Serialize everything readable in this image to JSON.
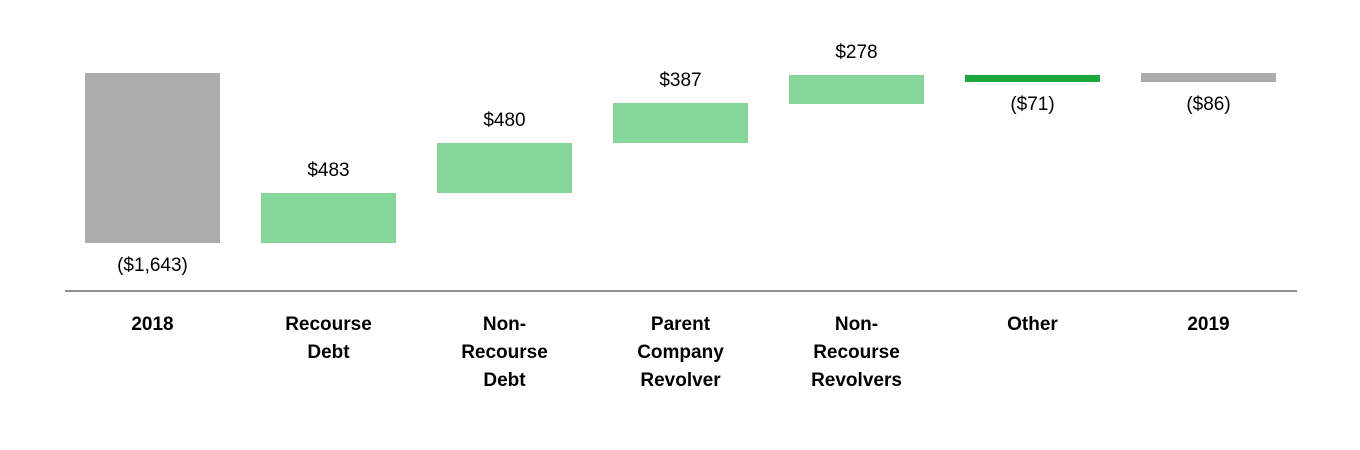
{
  "chart_data": {
    "type": "waterfall",
    "title": "",
    "description": "Waterfall chart from 2018 to 2019 with debt-change steps",
    "legend": "none",
    "grid": "off",
    "axis": {
      "baseline_visible": true
    },
    "value_range_px_note": "zero line at top of total bars; all cumulative values negative",
    "columns": [
      {
        "category_lines": [
          "2018"
        ],
        "display_label": "($1,643)",
        "value": -1643,
        "kind": "total",
        "color_key": "gray",
        "label_position": "below"
      },
      {
        "category_lines": [
          "Recourse",
          "Debt"
        ],
        "display_label": "$483",
        "value": 483,
        "kind": "delta",
        "color_key": "lightGreen",
        "label_position": "above"
      },
      {
        "category_lines": [
          "Non-",
          "Recourse",
          "Debt"
        ],
        "display_label": "$480",
        "value": 480,
        "kind": "delta",
        "color_key": "lightGreen",
        "label_position": "above"
      },
      {
        "category_lines": [
          "Parent",
          "Company",
          "Revolver"
        ],
        "display_label": "$387",
        "value": 387,
        "kind": "delta",
        "color_key": "lightGreen",
        "label_position": "above"
      },
      {
        "category_lines": [
          "Non-",
          "Recourse",
          "Revolvers"
        ],
        "display_label": "$278",
        "value": 278,
        "kind": "delta",
        "color_key": "lightGreen",
        "label_position": "above"
      },
      {
        "category_lines": [
          "Other"
        ],
        "display_label": "($71)",
        "value": -71,
        "kind": "delta",
        "color_key": "darkGreen",
        "label_position": "below"
      },
      {
        "category_lines": [
          "2019"
        ],
        "display_label": "($86)",
        "value": -86,
        "kind": "total",
        "color_key": "gray",
        "label_position": "below"
      }
    ],
    "colors": {
      "gray": "#ababab",
      "lightGreen": "#86d69a",
      "darkGreen": "#1aa83c",
      "axis": "#909090",
      "text": "#000000"
    }
  }
}
